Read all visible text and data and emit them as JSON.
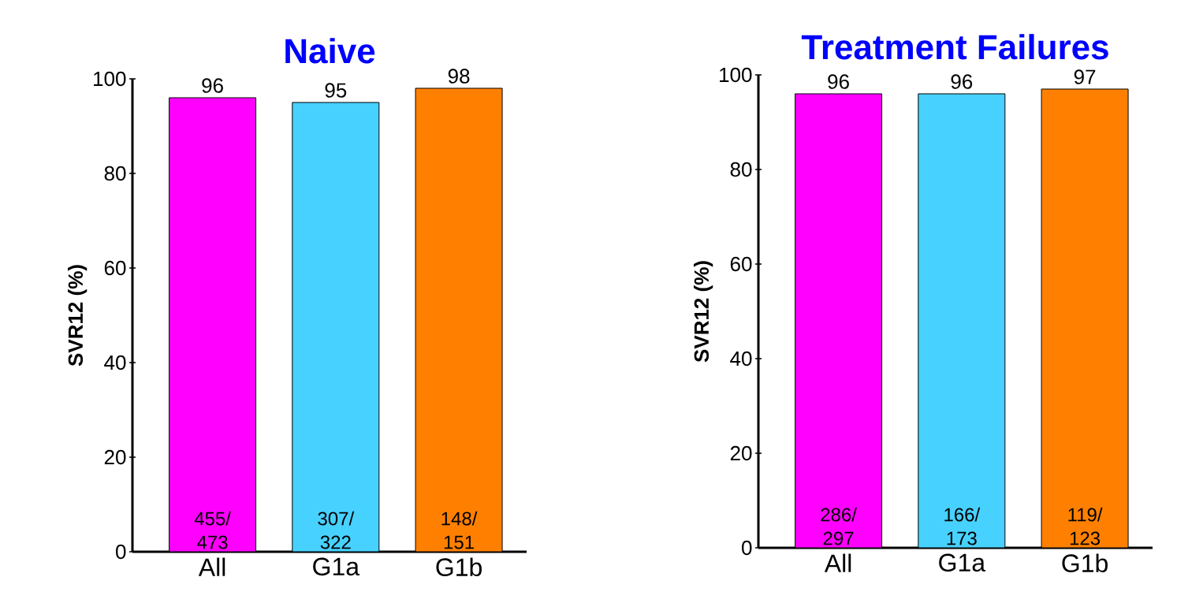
{
  "chart_data": [
    {
      "type": "bar",
      "title": "Naive",
      "ylabel": "SVR12 (%)",
      "categories": [
        "All",
        "G1a",
        "G1b"
      ],
      "values": [
        96,
        95,
        98
      ],
      "colors": [
        "#ff00ff",
        "#47d1ff",
        "#ff8000"
      ],
      "ylim": [
        0,
        100
      ],
      "yticks": [
        0,
        20,
        40,
        60,
        80,
        100
      ],
      "data_labels": true,
      "annotations": [
        "455/ 473",
        "307/ 322",
        "148/ 151"
      ]
    },
    {
      "type": "bar",
      "title": "Treatment Failures",
      "ylabel": "SVR12 (%)",
      "categories": [
        "All",
        "G1a",
        "G1b"
      ],
      "values": [
        96,
        96,
        97
      ],
      "colors": [
        "#ff00ff",
        "#47d1ff",
        "#ff8000"
      ],
      "ylim": [
        0,
        100
      ],
      "yticks": [
        0,
        20,
        40,
        60,
        80,
        100
      ],
      "data_labels": true,
      "annotations": [
        "286/ 297",
        "166/ 173",
        "119/ 123"
      ]
    }
  ]
}
